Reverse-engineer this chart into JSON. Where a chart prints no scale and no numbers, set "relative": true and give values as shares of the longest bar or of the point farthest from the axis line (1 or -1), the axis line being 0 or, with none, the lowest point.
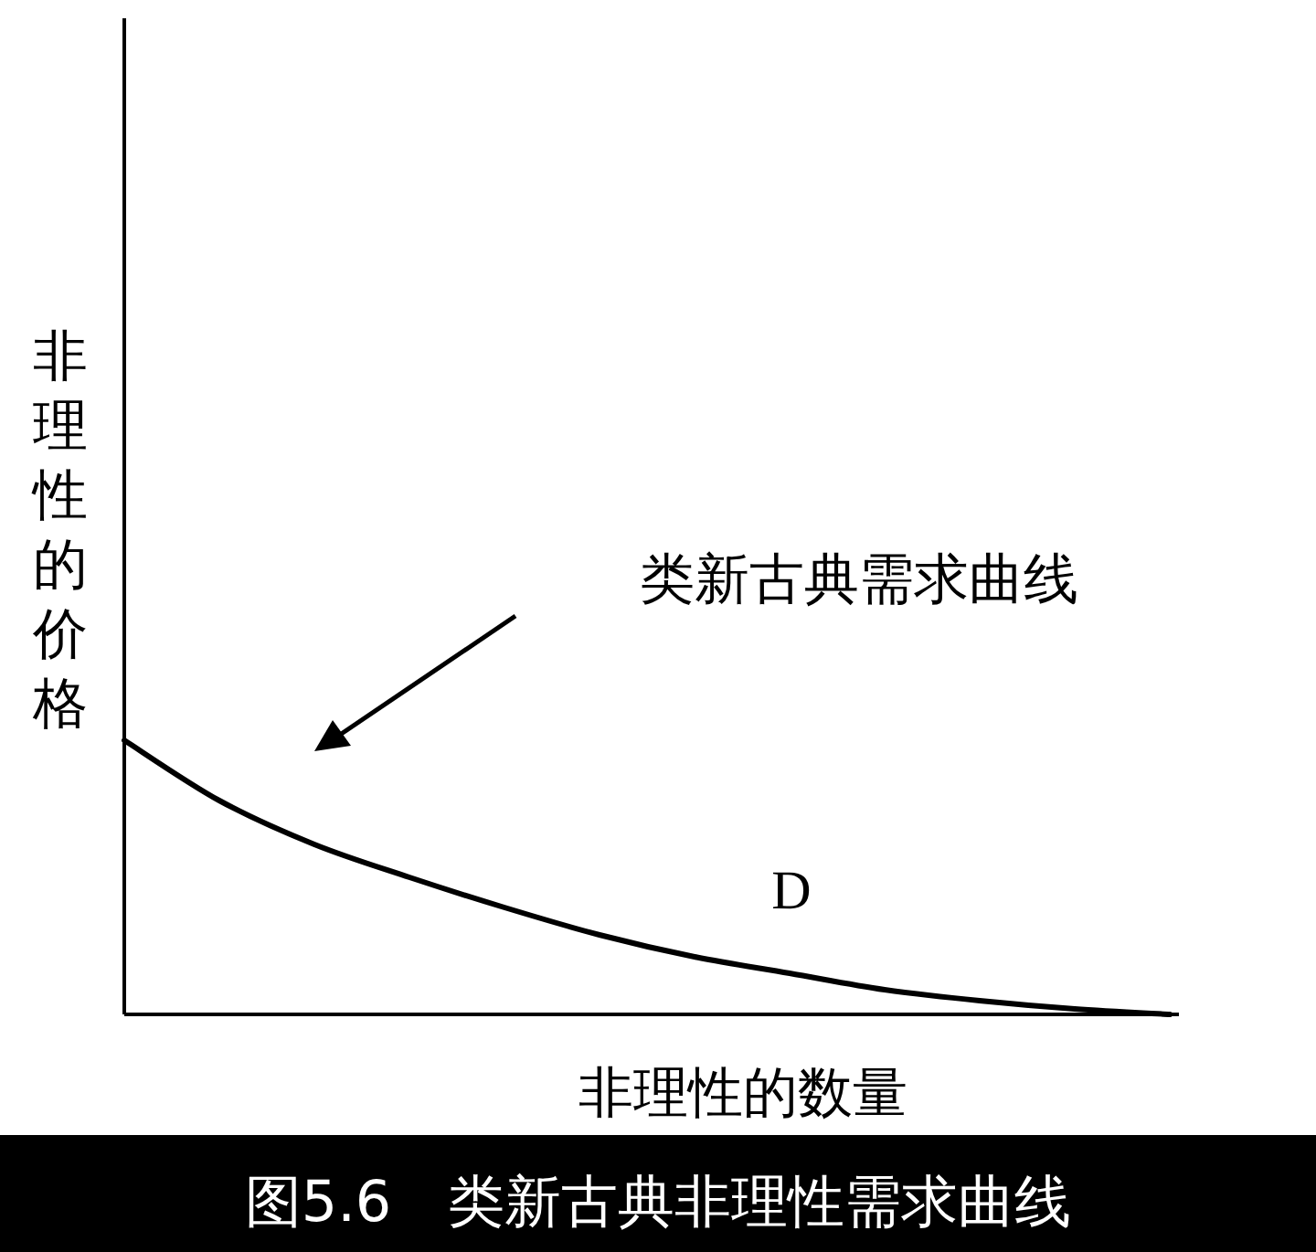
{
  "chart_data": {
    "type": "line",
    "relative": true,
    "xlabel": "非理性的数量",
    "ylabel": "非理性的价格",
    "categories": [
      null,
      null,
      null,
      null,
      null,
      null,
      null,
      null,
      null,
      null,
      null,
      null
    ],
    "series": [
      {
        "color": "#000000",
        "values": [
          1,
          0.78,
          0.62,
          0.5,
          0.39,
          0.29,
          0.21,
          0.15,
          0.09,
          0.05,
          0.02,
          0
        ]
      }
    ],
    "annotations": [
      "类新古典需求曲线",
      "D",
      "图5.6　类新古典非理性需求曲线"
    ],
    "marker": "none",
    "line_style": "solid"
  }
}
